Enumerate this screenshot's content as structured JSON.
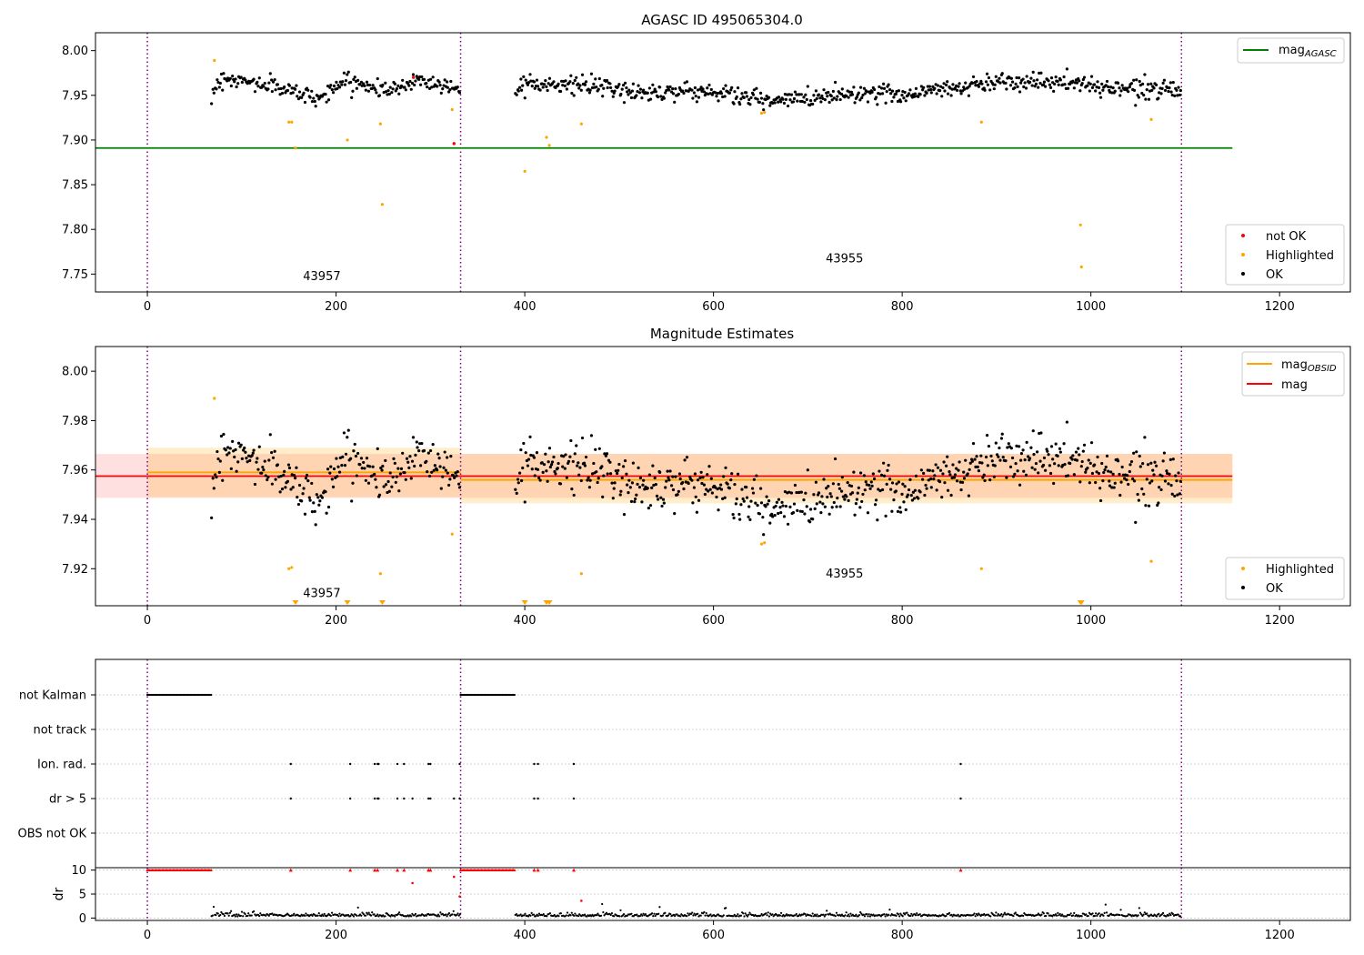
{
  "chart_data": [
    {
      "type": "scatter",
      "title": "AGASC ID 495065304.0",
      "xlim": [
        -55,
        1275
      ],
      "ylim": [
        7.73,
        8.02
      ],
      "xticks": [
        0,
        200,
        400,
        600,
        800,
        1000,
        1200
      ],
      "xtick_labels": [
        "0",
        "200",
        "400",
        "600",
        "800",
        "1000",
        "1200"
      ],
      "yticks": [
        7.75,
        7.8,
        7.85,
        7.9,
        7.95,
        8.0
      ],
      "ytick_labels": [
        "7.75",
        "7.80",
        "7.85",
        "7.90",
        "7.95",
        "8.00"
      ],
      "obsid_boundaries": [
        0,
        332,
        1096
      ],
      "obsid_labels": [
        {
          "text": "43957",
          "x": 165,
          "y": 7.743
        },
        {
          "text": "43955",
          "x": 719,
          "y": 7.763
        }
      ],
      "reference_line": {
        "name": "mag_AGASC",
        "y": 7.891,
        "x0": 0,
        "x1": 1150,
        "color": "#008000"
      },
      "legends": [
        {
          "entries": [
            {
              "label": "mag",
              "sub": "AGASC",
              "color": "#008000"
            }
          ],
          "loc": "upper right"
        },
        {
          "entries": [
            {
              "label": "not OK",
              "color": "#ff0000"
            },
            {
              "label": "Highlighted",
              "color": "#ffa500"
            },
            {
              "label": "OK",
              "color": "#000000"
            }
          ],
          "loc": "lower right"
        }
      ],
      "ok_segments": [
        {
          "x0": 68,
          "x1": 332,
          "points": 230,
          "knots": [
            [
              68,
              7.953
            ],
            [
              80,
              7.97
            ],
            [
              100,
              7.966
            ],
            [
              130,
              7.961
            ],
            [
              150,
              7.956
            ],
            [
              170,
              7.95
            ],
            [
              185,
              7.947
            ],
            [
              200,
              7.962
            ],
            [
              215,
              7.966
            ],
            [
              235,
              7.96
            ],
            [
              260,
              7.955
            ],
            [
              285,
              7.968
            ],
            [
              310,
              7.962
            ],
            [
              332,
              7.957
            ]
          ],
          "noise": 0.0045
        },
        {
          "x0": 390,
          "x1": 1096,
          "points": 650,
          "knots": [
            [
              390,
              7.95
            ],
            [
              400,
              7.968
            ],
            [
              420,
              7.963
            ],
            [
              460,
              7.961
            ],
            [
              490,
              7.958
            ],
            [
              520,
              7.953
            ],
            [
              560,
              7.955
            ],
            [
              600,
              7.954
            ],
            [
              630,
              7.949
            ],
            [
              660,
              7.943
            ],
            [
              690,
              7.946
            ],
            [
              720,
              7.95
            ],
            [
              760,
              7.953
            ],
            [
              800,
              7.951
            ],
            [
              840,
              7.957
            ],
            [
              870,
              7.96
            ],
            [
              900,
              7.966
            ],
            [
              930,
              7.966
            ],
            [
              960,
              7.964
            ],
            [
              990,
              7.963
            ],
            [
              1010,
              7.959
            ],
            [
              1050,
              7.958
            ],
            [
              1096,
              7.959
            ]
          ],
          "noise": 0.005
        }
      ],
      "highlighted": [
        {
          "x": 71,
          "y": 7.989
        },
        {
          "x": 150,
          "y": 7.92
        },
        {
          "x": 153,
          "y": 7.92
        },
        {
          "x": 157,
          "y": 7.891
        },
        {
          "x": 212,
          "y": 7.9
        },
        {
          "x": 247,
          "y": 7.918
        },
        {
          "x": 249,
          "y": 7.828
        },
        {
          "x": 323,
          "y": 7.934
        },
        {
          "x": 400,
          "y": 7.865
        },
        {
          "x": 423,
          "y": 7.903
        },
        {
          "x": 426,
          "y": 7.894
        },
        {
          "x": 460,
          "y": 7.918
        },
        {
          "x": 651,
          "y": 7.93
        },
        {
          "x": 654,
          "y": 7.931
        },
        {
          "x": 884,
          "y": 7.92
        },
        {
          "x": 989,
          "y": 7.805
        },
        {
          "x": 990,
          "y": 7.758
        },
        {
          "x": 1064,
          "y": 7.923
        }
      ],
      "not_ok": [
        {
          "x": 325,
          "y": 7.896
        },
        {
          "x": 282,
          "y": 7.97
        }
      ]
    },
    {
      "type": "scatter",
      "title": "Magnitude Estimates",
      "xlim": [
        -55,
        1275
      ],
      "ylim": [
        7.905,
        8.01
      ],
      "xticks": [
        0,
        200,
        400,
        600,
        800,
        1000,
        1200
      ],
      "xtick_labels": [
        "0",
        "200",
        "400",
        "600",
        "800",
        "1000",
        "1200"
      ],
      "yticks": [
        7.92,
        7.94,
        7.96,
        7.98,
        8.0
      ],
      "ytick_labels": [
        "7.92",
        "7.94",
        "7.96",
        "7.98",
        "8.00"
      ],
      "obsid_boundaries": [
        0,
        332,
        1096
      ],
      "obsid_labels": [
        {
          "text": "43957",
          "x": 165,
          "y": 7.9085
        },
        {
          "text": "43955",
          "x": 719,
          "y": 7.9165
        }
      ],
      "mag": {
        "name": "mag",
        "y": 7.9575,
        "lo": 7.9487,
        "hi": 7.9665,
        "x0": -55,
        "x1": 1150,
        "color": "#ff0000"
      },
      "mag_obsid": [
        {
          "y": 7.959,
          "lo": 7.949,
          "hi": 7.969,
          "x0": 0,
          "x1": 332
        },
        {
          "y": 7.956,
          "lo": 7.9465,
          "hi": 7.9665,
          "x0": 332,
          "x1": 1150
        }
      ],
      "legends": [
        {
          "entries": [
            {
              "label": "mag",
              "sub": "OBSID",
              "color": "#ffa500"
            },
            {
              "label": "mag",
              "color": "#ff0000"
            }
          ],
          "loc": "upper right"
        },
        {
          "entries": [
            {
              "label": "Highlighted",
              "color": "#ffa500"
            },
            {
              "label": "OK",
              "color": "#000000"
            }
          ],
          "loc": "lower right"
        }
      ],
      "out_of_range": [
        157,
        212,
        249,
        400,
        423,
        426,
        989,
        990
      ],
      "highlighted": [
        {
          "x": 71,
          "y": 7.989
        },
        {
          "x": 150,
          "y": 7.92
        },
        {
          "x": 153,
          "y": 7.9205
        },
        {
          "x": 247,
          "y": 7.918
        },
        {
          "x": 323,
          "y": 7.934
        },
        {
          "x": 460,
          "y": 7.918
        },
        {
          "x": 651,
          "y": 7.93
        },
        {
          "x": 654,
          "y": 7.9305
        },
        {
          "x": 884,
          "y": 7.92
        },
        {
          "x": 1064,
          "y": 7.923
        }
      ]
    },
    {
      "type": "scatter",
      "title": "",
      "xlim": [
        -55,
        1275
      ],
      "xticks": [
        0,
        200,
        400,
        600,
        800,
        1000,
        1200
      ],
      "xtick_labels": [
        "0",
        "200",
        "400",
        "600",
        "800",
        "1000",
        "1200"
      ],
      "obsid_boundaries": [
        0,
        332,
        1096
      ],
      "flag_rows": [
        "not Kalman",
        "not track",
        "Ion. rad.",
        "dr > 5",
        "OBS not OK"
      ],
      "not_kalman_ranges": [
        [
          0,
          68
        ],
        [
          332,
          390
        ]
      ],
      "ion_rad_x": [
        152,
        215,
        241,
        244,
        245,
        265,
        272,
        298,
        300,
        331,
        410,
        414,
        452,
        862
      ],
      "dr_gt5_x": [
        152,
        215,
        241,
        244,
        245,
        265,
        272,
        281,
        298,
        300,
        325,
        331,
        410,
        414,
        452,
        862
      ],
      "dr_panel": {
        "ylabel": "dr",
        "ylim": [
          -0.5,
          10.5
        ],
        "yticks": [
          0,
          5,
          10
        ],
        "ytick_labels": [
          "0",
          "5",
          "10"
        ],
        "clipped_ranges": [
          [
            0,
            68
          ],
          [
            332,
            390
          ]
        ],
        "clipped_x": [
          152,
          215,
          241,
          244,
          265,
          272,
          298,
          300,
          410,
          414,
          452,
          862
        ],
        "red_outliers": [
          {
            "x": 281,
            "y": 7.3
          },
          {
            "x": 325,
            "y": 8.6
          },
          {
            "x": 460,
            "y": 3.6
          },
          {
            "x": 331,
            "y": 4.5
          }
        ],
        "baseline_segments": [
          [
            68,
            332
          ],
          [
            390,
            1096
          ]
        ]
      }
    }
  ]
}
